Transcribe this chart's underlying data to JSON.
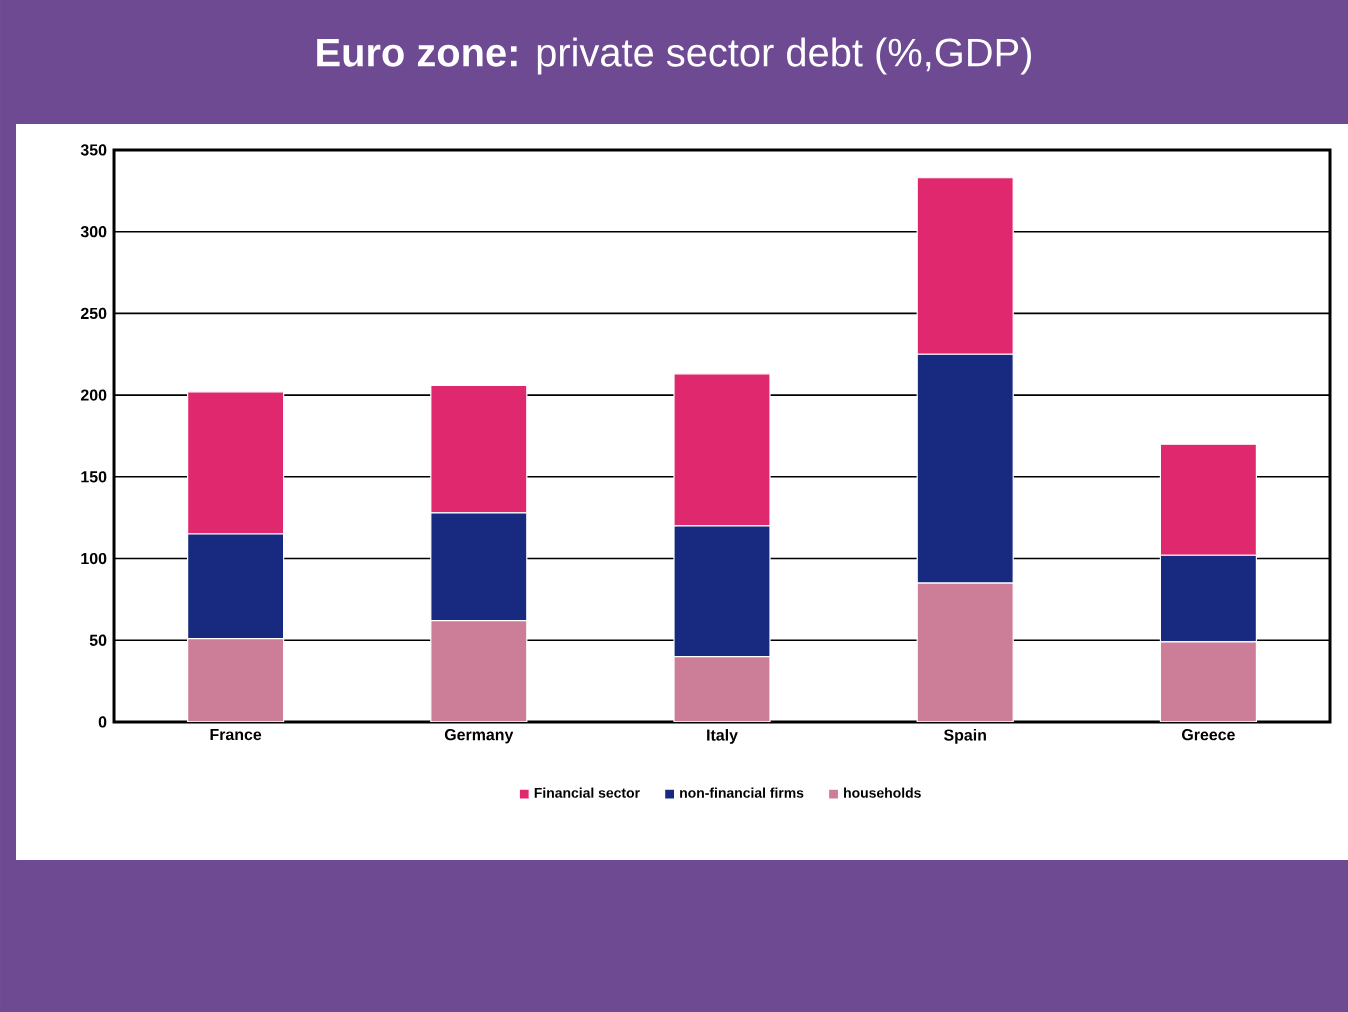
{
  "chart_data": {
    "type": "bar",
    "title": "**Euro zone:** private sector debt (%,GDP)",
    "categories": [
      "France",
      "Germany",
      "Italy",
      "Spain",
      "Greece"
    ],
    "stacked": true,
    "series": [
      {
        "name": "households",
        "color": "#cc7e98",
        "values": [
          51,
          62,
          40,
          85,
          49
        ]
      },
      {
        "name": "non-financial firms",
        "color": "#182a80",
        "values": [
          64,
          66,
          80,
          140,
          53
        ]
      },
      {
        "name": "Financial sector",
        "color": "#e0286e",
        "values": [
          87,
          78,
          93,
          108,
          68
        ]
      }
    ],
    "ylim": [
      0,
      350
    ],
    "yticks": [
      0,
      50,
      100,
      150,
      200,
      250,
      300,
      350
    ],
    "grid": "y",
    "legend": "bottom"
  }
}
